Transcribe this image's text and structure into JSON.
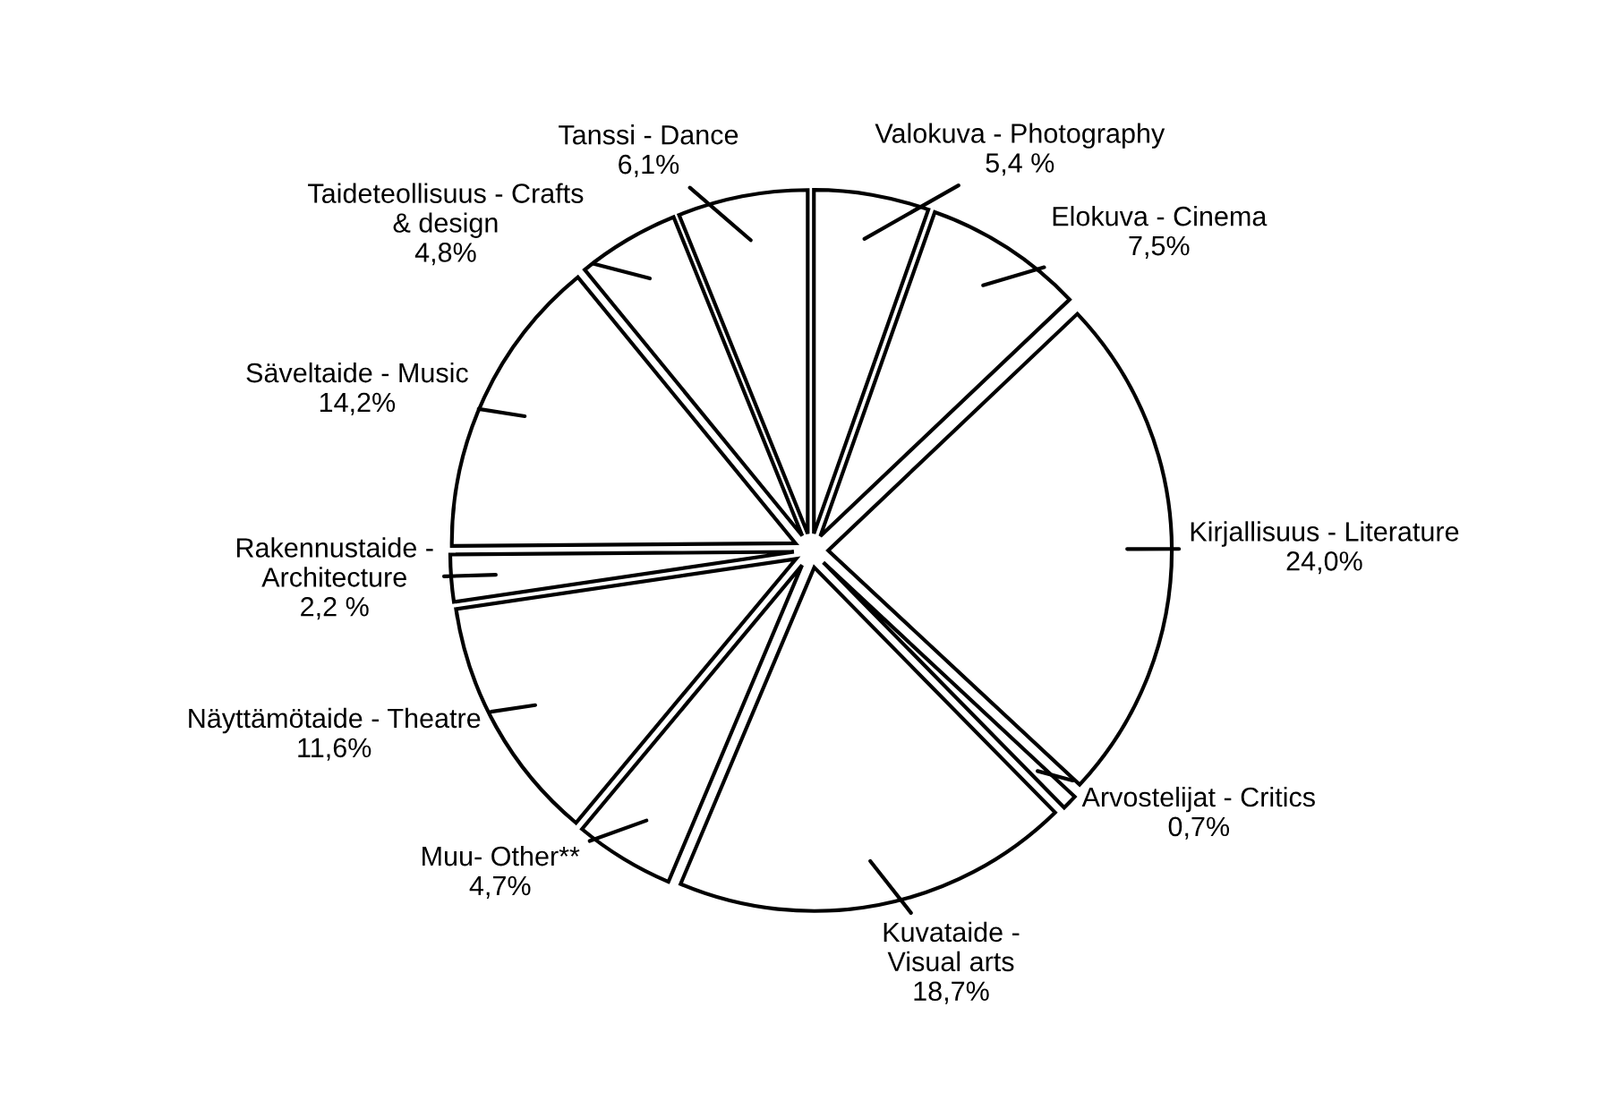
{
  "chart_data": {
    "type": "pie",
    "categories": [
      "Valokuva - Photography",
      "Elokuva - Cinema",
      "Kirjallisuus - Literature",
      "Arvostelijat - Critics",
      "Kuvataide -\nVisual arts",
      "Muu- Other**",
      "Näyttämötaide - Theatre",
      "Rakennustaide -\nArchitecture",
      "Säveltaide - Music",
      "Taideteollisuus - Crafts\n& design",
      "Tanssi - Dance"
    ],
    "values": [
      5.4,
      7.5,
      24.0,
      0.7,
      18.7,
      4.7,
      11.6,
      2.2,
      14.2,
      4.8,
      6.1
    ],
    "value_labels": [
      "5,4 %",
      "7,5%",
      "24,0%",
      "0,7%",
      "18,7%",
      "4,7%",
      "11,6%",
      "2,2 %",
      "14,2%",
      "4,8%",
      "6,1%"
    ],
    "colors": [
      "#ffffff",
      "#ffffff",
      "#ffffff",
      "#ffffff",
      "#ffffff",
      "#ffffff",
      "#ffffff",
      "#ffffff",
      "#ffffff",
      "#ffffff",
      "#ffffff"
    ],
    "legend": false
  }
}
